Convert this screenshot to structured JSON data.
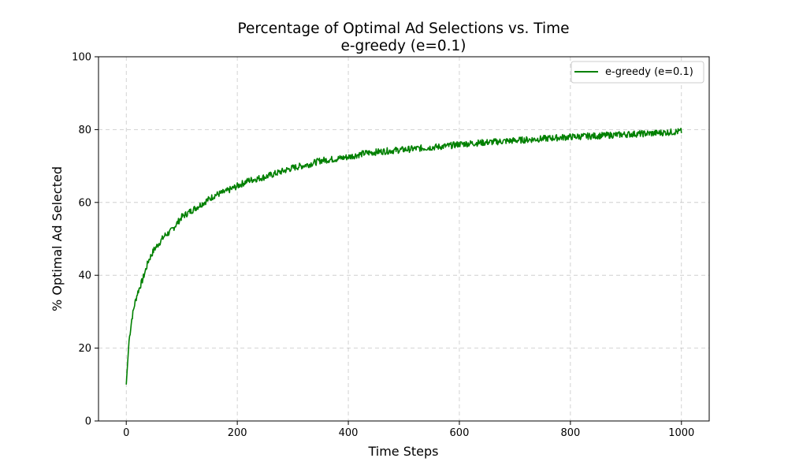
{
  "chart_data": {
    "type": "line",
    "title_line1": "Percentage of Optimal Ad Selections vs. Time",
    "title_line2": "e-greedy (e=0.1)",
    "xlabel": "Time Steps",
    "ylabel": "% Optimal Ad Selected",
    "xlim": [
      -50,
      1050
    ],
    "ylim": [
      0,
      100
    ],
    "xticks": [
      0,
      200,
      400,
      600,
      800,
      1000
    ],
    "xtick_labels": [
      "0",
      "200",
      "400",
      "600",
      "800",
      "1000"
    ],
    "yticks": [
      0,
      20,
      40,
      60,
      80,
      100
    ],
    "ytick_labels": [
      "0",
      "20",
      "40",
      "60",
      "80",
      "100"
    ],
    "grid": true,
    "legend_placement": "top-right",
    "series": [
      {
        "name": "e-greedy (e=0.1)",
        "color": "#008000",
        "x": [
          0,
          5,
          10,
          15,
          20,
          30,
          40,
          50,
          60,
          70,
          80,
          90,
          100,
          120,
          140,
          160,
          180,
          200,
          220,
          250,
          280,
          300,
          330,
          350,
          380,
          400,
          430,
          460,
          500,
          540,
          580,
          600,
          650,
          700,
          750,
          800,
          850,
          900,
          950,
          1000
        ],
        "values": [
          10,
          22,
          28,
          32,
          35,
          39,
          44,
          47,
          49,
          51,
          52,
          54,
          56,
          58,
          60,
          62,
          63,
          64.5,
          66,
          67,
          68.5,
          69.5,
          70.5,
          71.5,
          72,
          72.5,
          73.5,
          74,
          74.5,
          75,
          75.5,
          76,
          76.5,
          77,
          77.5,
          78,
          78.3,
          78.7,
          79,
          79.5
        ]
      }
    ]
  }
}
